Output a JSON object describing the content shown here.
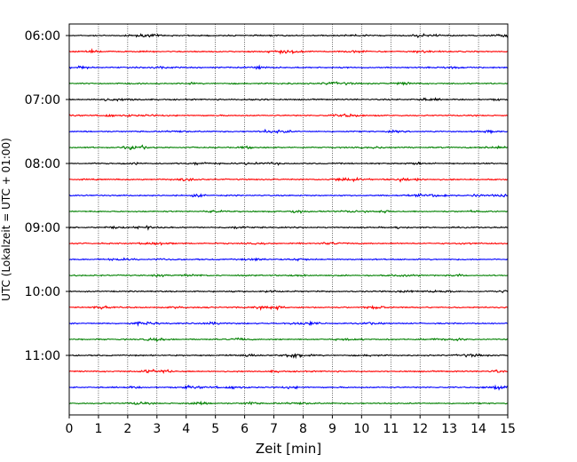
{
  "chart_data": {
    "type": "line",
    "title": "",
    "xlabel": "Zeit  [min]",
    "ylabel": "UTC (Lokalzeit = UTC + 01:00)",
    "xlim": [
      0,
      15
    ],
    "x_ticks": [
      "0",
      "1",
      "2",
      "3",
      "4",
      "5",
      "6",
      "7",
      "8",
      "9",
      "10",
      "11",
      "12",
      "13",
      "14",
      "15"
    ],
    "y_tick_labels": [
      "06:00",
      "07:00",
      "08:00",
      "09:00",
      "10:00",
      "11:00"
    ],
    "grid": "vertical dotted",
    "trace_interval_min": 15,
    "start_time": "06:00",
    "end_time": "11:45",
    "trace_colors": [
      "#000000",
      "#ff0000",
      "#0000ff",
      "#008000"
    ],
    "traces": [
      {
        "time": "06:00",
        "color": "#000000"
      },
      {
        "time": "06:15",
        "color": "#ff0000"
      },
      {
        "time": "06:30",
        "color": "#0000ff"
      },
      {
        "time": "06:45",
        "color": "#008000"
      },
      {
        "time": "07:00",
        "color": "#000000"
      },
      {
        "time": "07:15",
        "color": "#ff0000"
      },
      {
        "time": "07:30",
        "color": "#0000ff"
      },
      {
        "time": "07:45",
        "color": "#008000"
      },
      {
        "time": "08:00",
        "color": "#000000"
      },
      {
        "time": "08:15",
        "color": "#ff0000"
      },
      {
        "time": "08:30",
        "color": "#0000ff"
      },
      {
        "time": "08:45",
        "color": "#008000"
      },
      {
        "time": "09:00",
        "color": "#000000"
      },
      {
        "time": "09:15",
        "color": "#ff0000"
      },
      {
        "time": "09:30",
        "color": "#0000ff"
      },
      {
        "time": "09:45",
        "color": "#008000"
      },
      {
        "time": "10:00",
        "color": "#000000"
      },
      {
        "time": "10:15",
        "color": "#ff0000"
      },
      {
        "time": "10:30",
        "color": "#0000ff"
      },
      {
        "time": "10:45",
        "color": "#008000"
      },
      {
        "time": "11:00",
        "color": "#000000"
      },
      {
        "time": "11:15",
        "color": "#ff0000"
      },
      {
        "time": "11:30",
        "color": "#0000ff"
      },
      {
        "time": "11:45",
        "color": "#008000"
      }
    ]
  }
}
